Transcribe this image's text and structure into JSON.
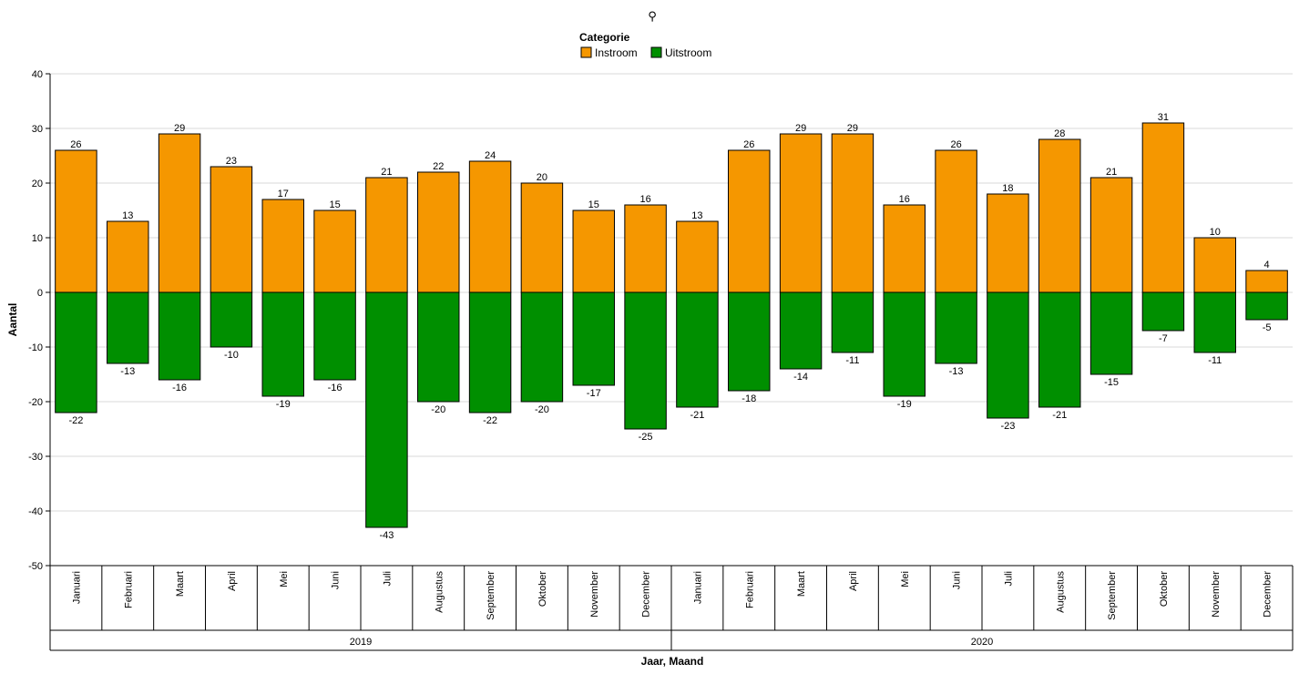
{
  "chart_data": {
    "type": "bar",
    "stacked": true,
    "title": "",
    "xlabel": "Jaar, Maand",
    "ylabel": "Aantal",
    "ylim": [
      -50,
      40
    ],
    "yticks": [
      40,
      30,
      20,
      10,
      0,
      -10,
      -20,
      -30,
      -40,
      -50
    ],
    "grid": true,
    "legend": {
      "title": "Categorie",
      "placement": "top-center"
    },
    "groups": [
      {
        "label": "2019",
        "categories": [
          "Januari",
          "Februari",
          "Maart",
          "April",
          "Mei",
          "Juni",
          "Juli",
          "Augustus",
          "September",
          "Oktober",
          "November",
          "December"
        ]
      },
      {
        "label": "2020",
        "categories": [
          "Januari",
          "Februari",
          "Maart",
          "April",
          "Mei",
          "Juni",
          "Juli",
          "Augustus",
          "September",
          "Oktober",
          "November",
          "December"
        ]
      }
    ],
    "series": [
      {
        "name": "Instroom",
        "color": "#f59700",
        "values": [
          26,
          13,
          29,
          23,
          17,
          15,
          21,
          22,
          24,
          20,
          15,
          16,
          13,
          26,
          29,
          29,
          16,
          26,
          18,
          28,
          21,
          31,
          10,
          4
        ]
      },
      {
        "name": "Uitstroom",
        "color": "#008f00",
        "values": [
          -22,
          -13,
          -16,
          -10,
          -19,
          -16,
          -43,
          -20,
          -22,
          -20,
          -17,
          -25,
          -21,
          -18,
          -14,
          -11,
          -19,
          -13,
          -23,
          -21,
          -15,
          -7,
          -11,
          -5
        ]
      }
    ]
  }
}
